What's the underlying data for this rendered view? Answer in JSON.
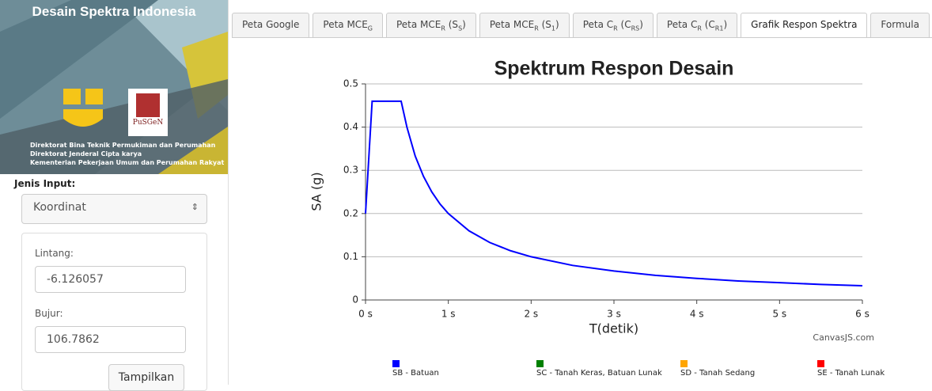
{
  "sidebar": {
    "title": "Desain Spektra Indonesia",
    "logo_text": "PuSGeN",
    "banner_lines": [
      "Direktorat Bina Teknik Permukiman dan Perumahan",
      "Direktorat Jenderal Cipta karya",
      "Kementerian Pekerjaan Umum dan Perumahan Rakyat"
    ],
    "input_type_label": "Jenis Input:",
    "input_type_value": "Koordinat",
    "lat_label": "Lintang:",
    "lat_value": "-6.126057",
    "lon_label": "Bujur:",
    "lon_value": "106.7862",
    "button": "Tampilkan"
  },
  "tabs": [
    [
      "Peta Google"
    ],
    [
      "Peta MCE",
      {
        "sub": "G"
      }
    ],
    [
      "Peta MCE",
      {
        "sub": "R"
      },
      " (S",
      {
        "sub": "S"
      },
      ")"
    ],
    [
      "Peta MCE",
      {
        "sub": "R"
      },
      " (S",
      {
        "sub": "1"
      },
      ")"
    ],
    [
      "Peta C",
      {
        "sub": "R"
      },
      " (C",
      {
        "sub": "RS"
      },
      ")"
    ],
    [
      "Peta C",
      {
        "sub": "R"
      },
      " (C",
      {
        "sub": "R1"
      },
      ")"
    ],
    [
      "Grafik Respon Spektra"
    ],
    [
      "Formula"
    ]
  ],
  "active_tab": 6,
  "chart_data": {
    "type": "line",
    "title": "Spektrum Respon Desain",
    "x_label": "T(detik)",
    "y_label": "SA (g)",
    "credit": "CanvasJS.com",
    "x": [
      0,
      0.08,
      0.43,
      0.5,
      0.6,
      0.7,
      0.8,
      0.9,
      1,
      1.25,
      1.5,
      1.75,
      2,
      2.5,
      3,
      3.5,
      4,
      4.5,
      5,
      5.5,
      6
    ],
    "series": [
      {
        "name": "SB - Batuan",
        "color": "#0000ff",
        "values": [
          0.2,
          0.46,
          0.46,
          0.4,
          0.333,
          0.286,
          0.25,
          0.222,
          0.2,
          0.16,
          0.133,
          0.114,
          0.1,
          0.08,
          0.067,
          0.057,
          0.05,
          0.044,
          0.04,
          0.036,
          0.033
        ]
      },
      {
        "name": "SC - Tanah Keras, Batuan Lunak",
        "color": "#008000",
        "values": [
          null,
          null,
          null,
          null,
          null,
          null,
          null,
          null,
          null,
          null,
          null,
          null,
          null,
          null,
          null,
          null,
          null,
          null,
          null,
          null,
          null
        ]
      },
      {
        "name": "SD - Tanah Sedang",
        "color": "#ffa500",
        "values": [
          null,
          null,
          null,
          null,
          null,
          null,
          null,
          null,
          null,
          null,
          null,
          null,
          null,
          null,
          null,
          null,
          null,
          null,
          null,
          null,
          null
        ]
      },
      {
        "name": "SE - Tanah Lunak",
        "color": "#ff0000",
        "values": [
          null,
          null,
          null,
          null,
          null,
          null,
          null,
          null,
          null,
          null,
          null,
          null,
          null,
          null,
          null,
          null,
          null,
          null,
          null,
          null,
          null
        ]
      }
    ],
    "xlim": [
      0,
      6
    ],
    "xticks": [
      {
        "value": 0,
        "label": "0 s"
      },
      {
        "value": 1,
        "label": "1 s"
      },
      {
        "value": 2,
        "label": "2 s"
      },
      {
        "value": 3,
        "label": "3 s"
      },
      {
        "value": 4,
        "label": "4 s"
      },
      {
        "value": 5,
        "label": "5 s"
      },
      {
        "value": 6,
        "label": "6 s"
      }
    ],
    "ylim": [
      0,
      0.5
    ],
    "yticks": [
      0,
      0.1,
      0.2,
      0.3,
      0.4,
      0.5
    ],
    "grid": true
  }
}
